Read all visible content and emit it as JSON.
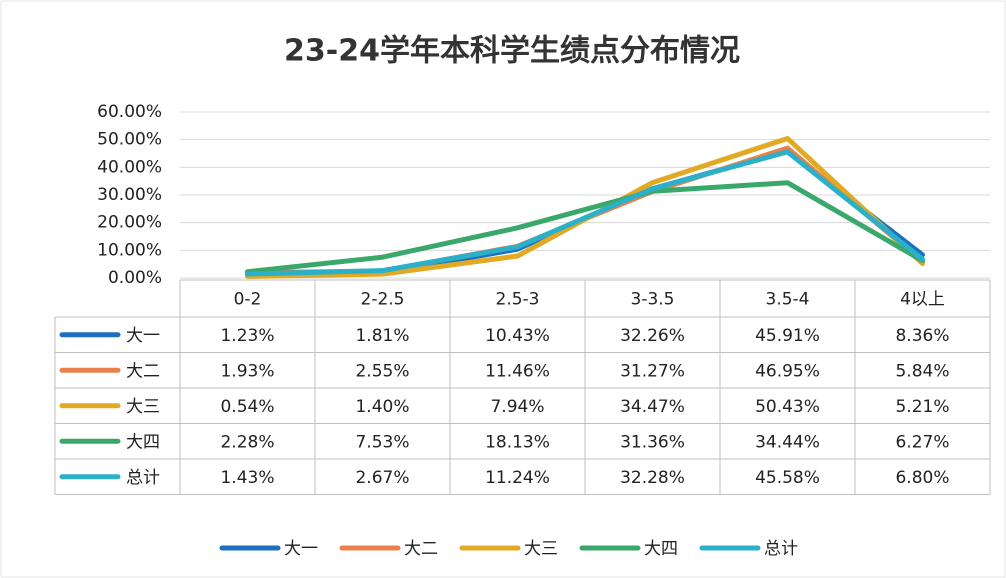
{
  "chart_data": {
    "type": "line",
    "title": "23-24学年本科学生绩点分布情况",
    "categories": [
      "0-2",
      "2-2.5",
      "2.5-3",
      "3-3.5",
      "3.5-4",
      "4以上"
    ],
    "ylim": [
      0,
      60
    ],
    "yticks": [
      {
        "value": 0,
        "label": "0.00%"
      },
      {
        "value": 10,
        "label": "10.00%"
      },
      {
        "value": 20,
        "label": "20.00%"
      },
      {
        "value": 30,
        "label": "30.00%"
      },
      {
        "value": 40,
        "label": "40.00%"
      },
      {
        "value": 50,
        "label": "50.00%"
      },
      {
        "value": 60,
        "label": "60.00%"
      }
    ],
    "grid": true,
    "legend": "bottom",
    "series": [
      {
        "name": "大一",
        "color": "#1f6fc0",
        "values": [
          1.23,
          1.81,
          10.43,
          32.26,
          45.91,
          8.36
        ],
        "value_labels": [
          "1.23%",
          "1.81%",
          "10.43%",
          "32.26%",
          "45.91%",
          "8.36%"
        ]
      },
      {
        "name": "大二",
        "color": "#e9804c",
        "values": [
          1.93,
          2.55,
          11.46,
          31.27,
          46.95,
          5.84
        ],
        "value_labels": [
          "1.93%",
          "2.55%",
          "11.46%",
          "31.27%",
          "46.95%",
          "5.84%"
        ]
      },
      {
        "name": "大三",
        "color": "#e2a922",
        "values": [
          0.54,
          1.4,
          7.94,
          34.47,
          50.43,
          5.21
        ],
        "value_labels": [
          "0.54%",
          "1.40%",
          "7.94%",
          "34.47%",
          "50.43%",
          "5.21%"
        ]
      },
      {
        "name": "大四",
        "color": "#3ba86b",
        "values": [
          2.28,
          7.53,
          18.13,
          31.36,
          34.44,
          6.27
        ],
        "value_labels": [
          "2.28%",
          "7.53%",
          "18.13%",
          "31.36%",
          "34.44%",
          "6.27%"
        ]
      },
      {
        "name": "总计",
        "color": "#2bb0c9",
        "values": [
          1.43,
          2.67,
          11.24,
          32.28,
          45.58,
          6.8
        ],
        "value_labels": [
          "1.43%",
          "2.67%",
          "11.24%",
          "32.28%",
          "45.58%",
          "6.80%"
        ]
      }
    ]
  }
}
